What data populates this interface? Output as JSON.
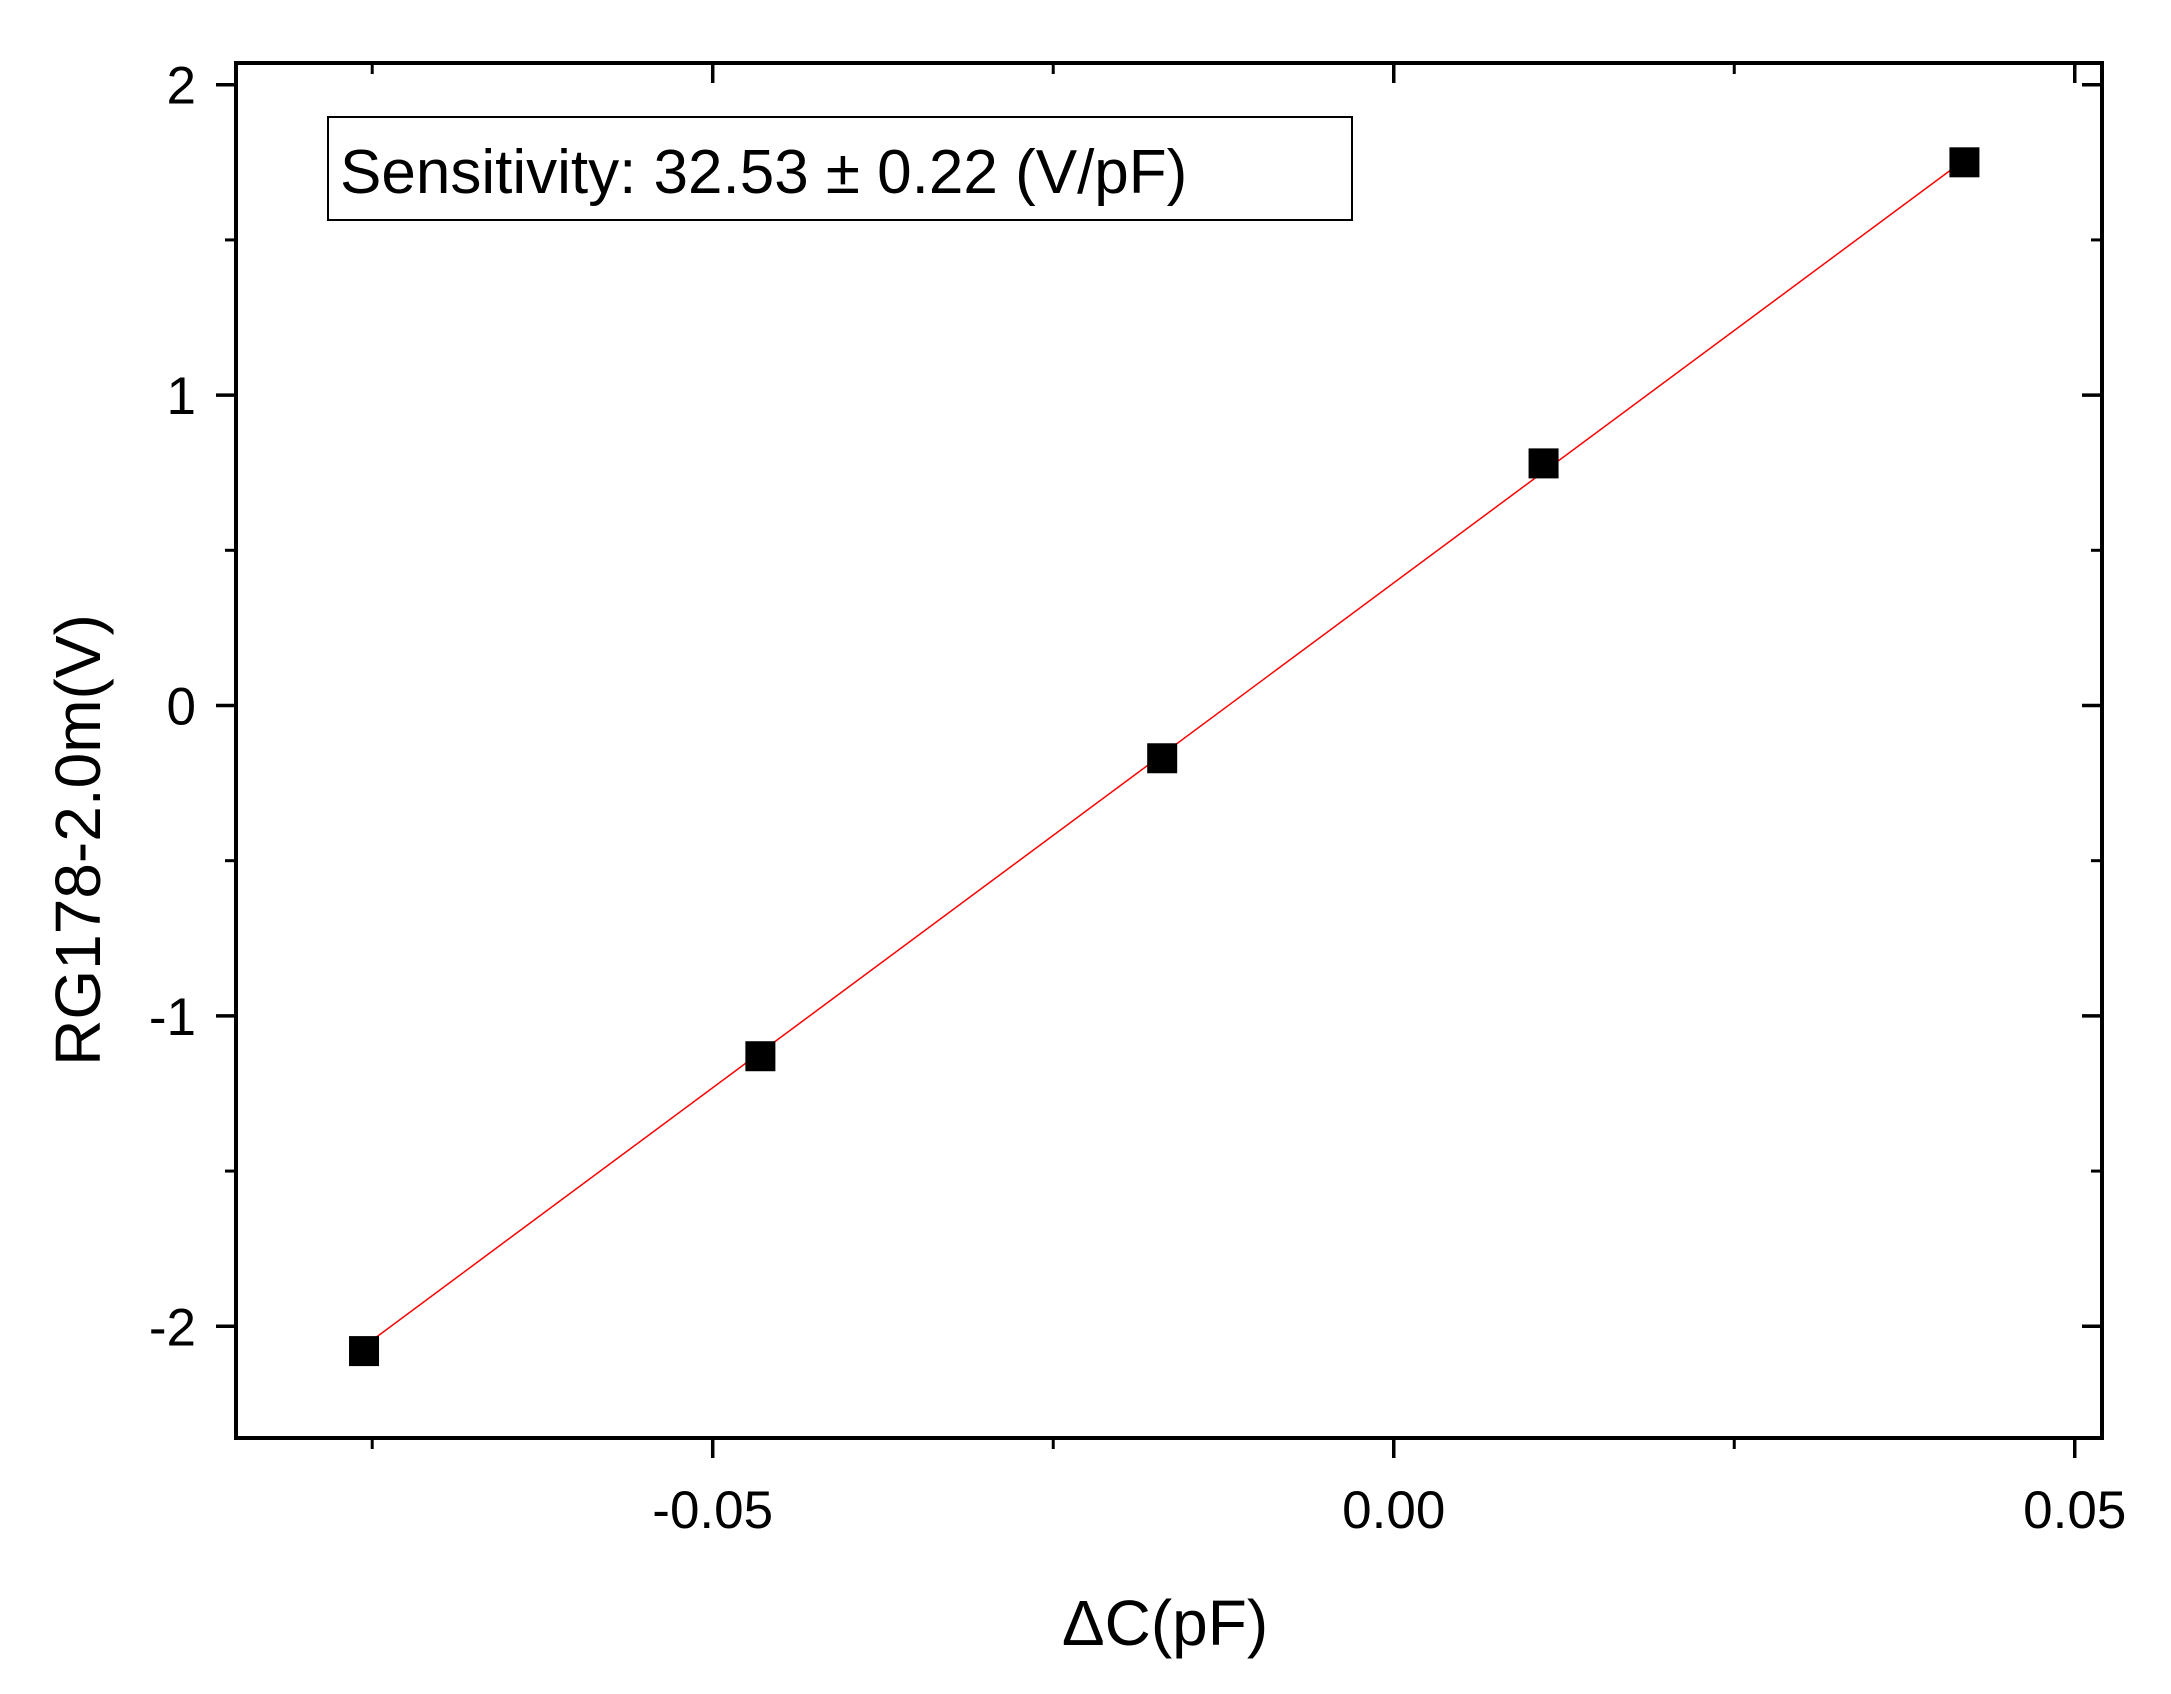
{
  "chart_data": {
    "type": "scatter",
    "xlabel": "ΔC(pF)",
    "ylabel": "RG178-2.0m(V)",
    "xlim": [
      -0.085,
      0.052
    ],
    "ylim": [
      -2.36,
      2.07
    ],
    "xticks": [
      {
        "value": -0.05,
        "label": "-0.05"
      },
      {
        "value": 0.0,
        "label": "0.00"
      },
      {
        "value": 0.05,
        "label": "0.05"
      }
    ],
    "xminor": [
      -0.075,
      -0.025,
      0.025
    ],
    "yticks": [
      {
        "value": 2,
        "label": "2"
      },
      {
        "value": 1,
        "label": "1"
      },
      {
        "value": 0,
        "label": "0"
      },
      {
        "value": -1,
        "label": "-1"
      },
      {
        "value": -2,
        "label": "-2"
      }
    ],
    "yminor": [
      1.5,
      0.5,
      -0.5,
      -1.5
    ],
    "annotation": "Sensitivity: 32.53 ± 0.22 (V/pF)",
    "grid": false,
    "series": [
      {
        "marker": "square",
        "color": "#000000",
        "x": [
          -0.0756,
          -0.0465,
          -0.017,
          0.011,
          0.0419
        ],
        "y": [
          -2.08,
          -1.13,
          -0.17,
          0.78,
          1.75
        ]
      }
    ],
    "fit": {
      "type": "line",
      "color": "#ff0000",
      "slope": 32.53,
      "intercept": 0.395,
      "x_range": [
        -0.0756,
        0.0419
      ]
    }
  }
}
